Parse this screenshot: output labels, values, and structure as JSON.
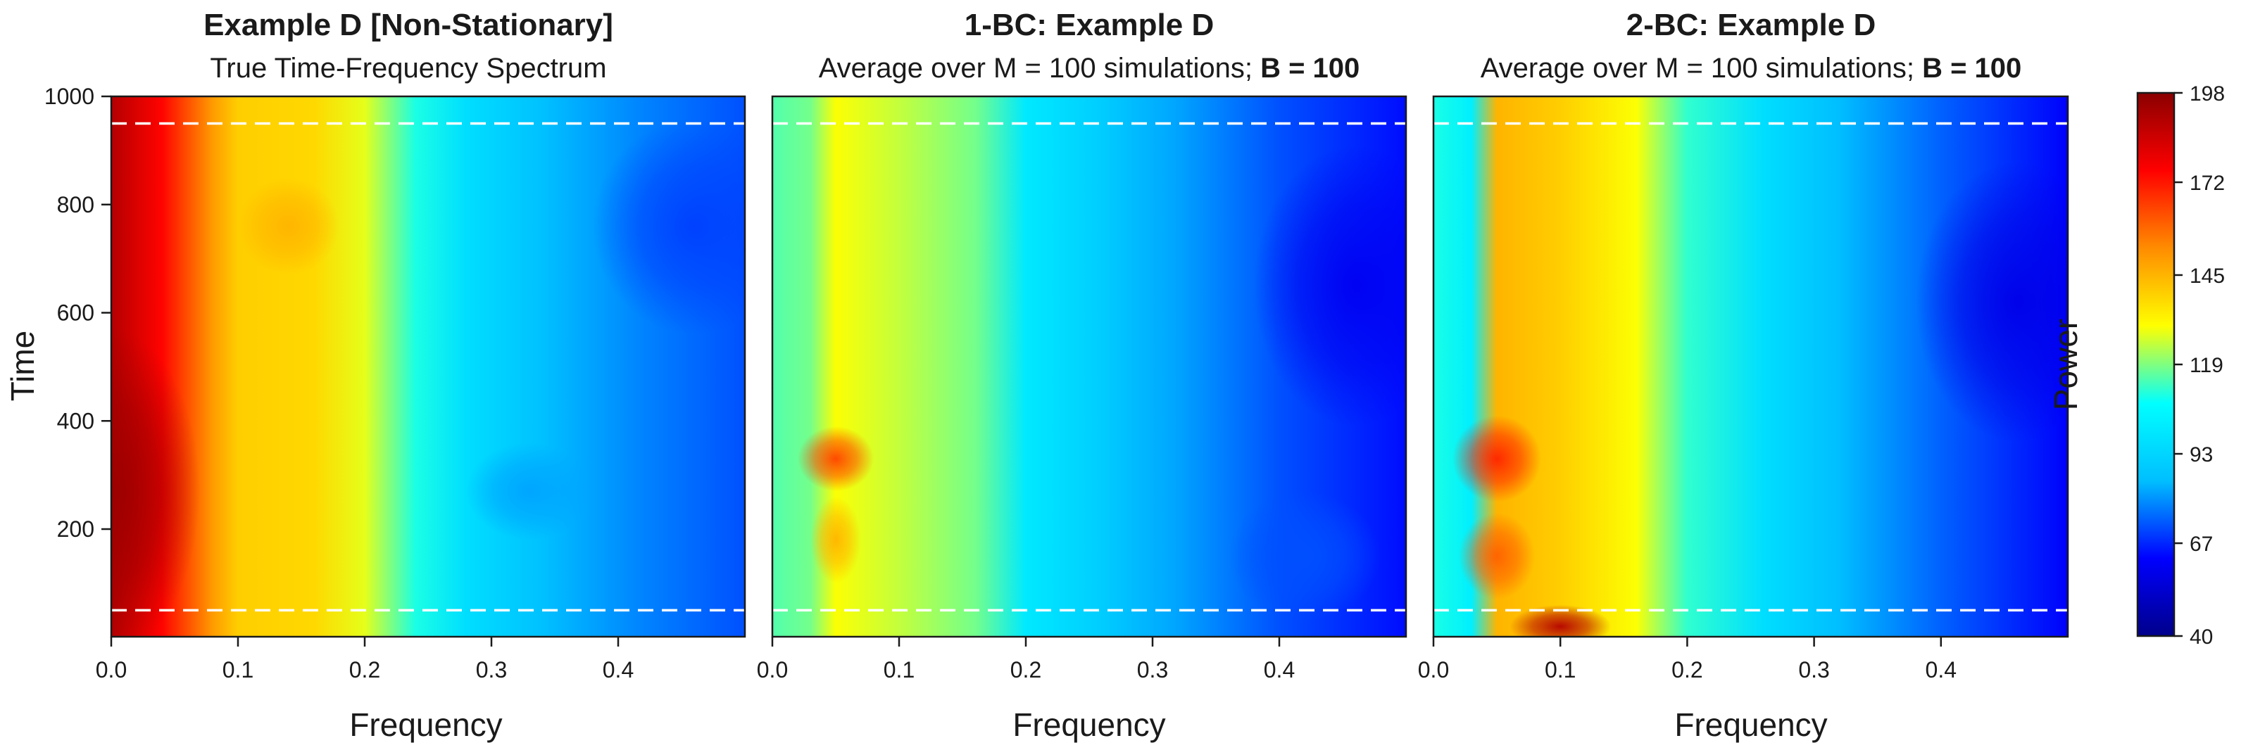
{
  "chart_data": [
    {
      "type": "heatmap",
      "title": "Example D [Non-Stationary]",
      "subtitle": "True Time-Frequency Spectrum",
      "subtitle_bold": "",
      "xlabel": "Frequency",
      "ylabel": "Time",
      "xlim": [
        0,
        0.5
      ],
      "ylim": [
        1,
        1000
      ],
      "x_ticks": [
        "0.0",
        "0.1",
        "0.2",
        "0.3",
        "0.4"
      ],
      "x_tick_values": [
        0,
        0.1,
        0.2,
        0.3,
        0.4
      ],
      "y_ticks": [
        "200",
        "400",
        "600",
        "800",
        "1000"
      ],
      "y_tick_values": [
        200,
        400,
        600,
        800,
        1000
      ],
      "reference_lines_time": [
        50,
        950
      ],
      "reference_line_style": "white dashed",
      "power_summary": {
        "peak_frequency": 0.0,
        "peak_time": 270,
        "peak_power": 195,
        "ridge_frequency": 0.1,
        "ridge_power": 140,
        "high_frequency_min_power": 70
      }
    },
    {
      "type": "heatmap",
      "title": "1-BC: Example D",
      "subtitle": "Average over M = 100 simulations; ",
      "subtitle_bold": "B = 100",
      "xlabel": "Frequency",
      "ylabel": "",
      "xlim": [
        0,
        0.5
      ],
      "ylim": [
        1,
        1000
      ],
      "x_ticks": [
        "0.0",
        "0.1",
        "0.2",
        "0.3",
        "0.4"
      ],
      "x_tick_values": [
        0,
        0.1,
        0.2,
        0.3,
        0.4
      ],
      "reference_lines_time": [
        50,
        950
      ],
      "reference_line_style": "white dashed",
      "power_summary": {
        "peak_frequency": 0.05,
        "peak_time": 330,
        "peak_power": 165,
        "high_frequency_min_power": 60
      }
    },
    {
      "type": "heatmap",
      "title": "2-BC: Example D",
      "subtitle": "Average over M = 100 simulations; ",
      "subtitle_bold": "B = 100",
      "xlabel": "Frequency",
      "ylabel": "",
      "xlim": [
        0,
        0.5
      ],
      "ylim": [
        1,
        1000
      ],
      "x_ticks": [
        "0.0",
        "0.1",
        "0.2",
        "0.3",
        "0.4"
      ],
      "x_tick_values": [
        0,
        0.1,
        0.2,
        0.3,
        0.4
      ],
      "reference_lines_time": [
        50,
        950
      ],
      "reference_line_style": "white dashed",
      "power_summary": {
        "peak_frequency": 0.1,
        "peak_time": 20,
        "peak_power": 190,
        "high_frequency_min_power": 58
      }
    }
  ],
  "colorbar": {
    "label": "Power",
    "range": [
      40,
      198
    ],
    "ticks": [
      "40",
      "67",
      "93",
      "119",
      "145",
      "172",
      "198"
    ],
    "tick_values": [
      40,
      67,
      93,
      119,
      145,
      172,
      198
    ],
    "colors": [
      "#00008b",
      "#0000ff",
      "#00bfff",
      "#00ffff",
      "#ffff00",
      "#ff8c00",
      "#ff0000",
      "#8b0000"
    ]
  }
}
